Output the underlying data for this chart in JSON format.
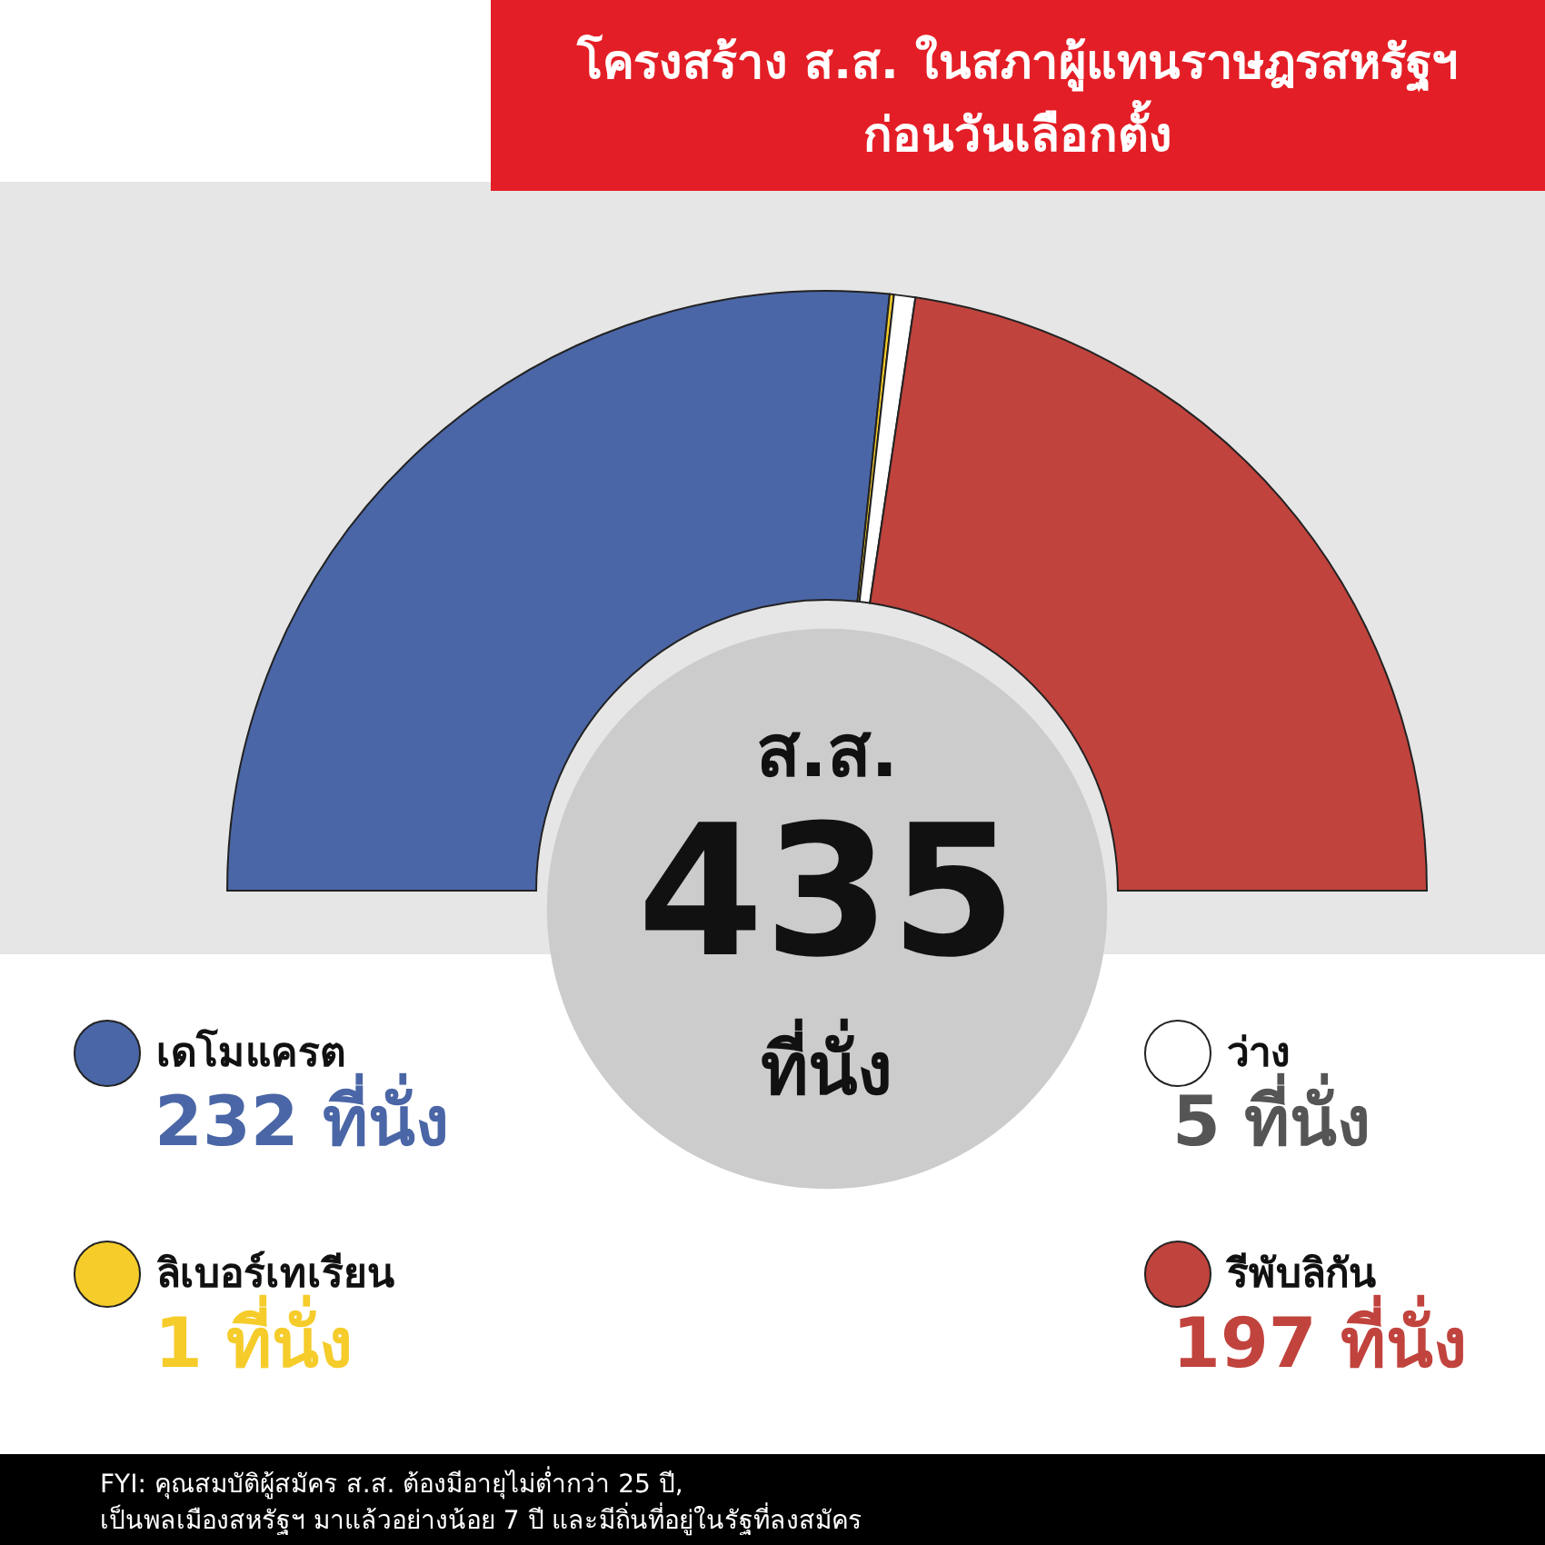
{
  "chart_data": {
    "type": "donut",
    "title": [
      "โครงสร้าง ส.ส. ในสภาผู้แทนราษฎรสหรัฐฯ",
      "ก่อนวันเลือกตั้ง"
    ],
    "categories": [
      "เดโมแครต",
      "ลิเบอร์เทเรียน",
      "ว่าง",
      "รีพับลิกัน"
    ],
    "values": [
      232,
      1,
      5,
      197
    ],
    "colors": [
      "#4a66a6",
      "#f5cc2a",
      "#ffffff",
      "#c1433d"
    ],
    "value_labels": [
      "232 ที่นั่ง",
      "1 ที่นั่ง",
      "5 ที่นั่ง",
      "197 ที่นั่ง"
    ],
    "annotations": [
      "ส.ส.",
      "435",
      "ที่นั่ง",
      "FYI: คุณสมบัติผู้สมัคร ส.ส. ต้องมีอายุไม่ต่ำกว่า 25 ปี,",
      "เป็นพลเมืองสหรัฐฯ มาแล้วอย่างน้อย 7 ปี และมีถิ่นที่อยู่ในรัฐที่ลงสมัคร"
    ],
    "legend": "bottom"
  }
}
